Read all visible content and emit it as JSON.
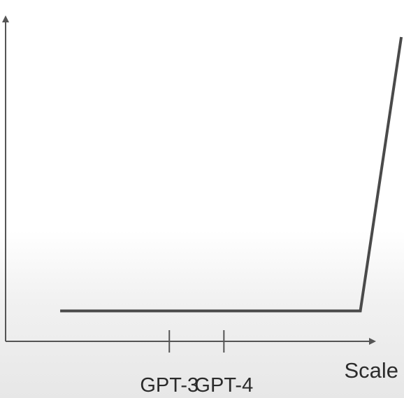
{
  "chart_data": {
    "type": "line",
    "title": "",
    "xlabel": "Scale",
    "ylabel": "",
    "x_tick_labels": [
      {
        "label": "GPT-3",
        "x": 3
      },
      {
        "label": "GPT-4",
        "x": 4
      }
    ],
    "series": [
      {
        "x": [
          1,
          6.5,
          7.25
        ],
        "y": [
          0.3,
          0.3,
          3.0
        ]
      }
    ],
    "xlim": [
      0,
      7.3
    ],
    "ylim": [
      0,
      3.2
    ],
    "grid": false,
    "legend": "none",
    "axis_ticks_numeric": false,
    "colors": {
      "line": "#4a4a4a",
      "axis": "#555555",
      "text": "#2b2b2b"
    }
  }
}
